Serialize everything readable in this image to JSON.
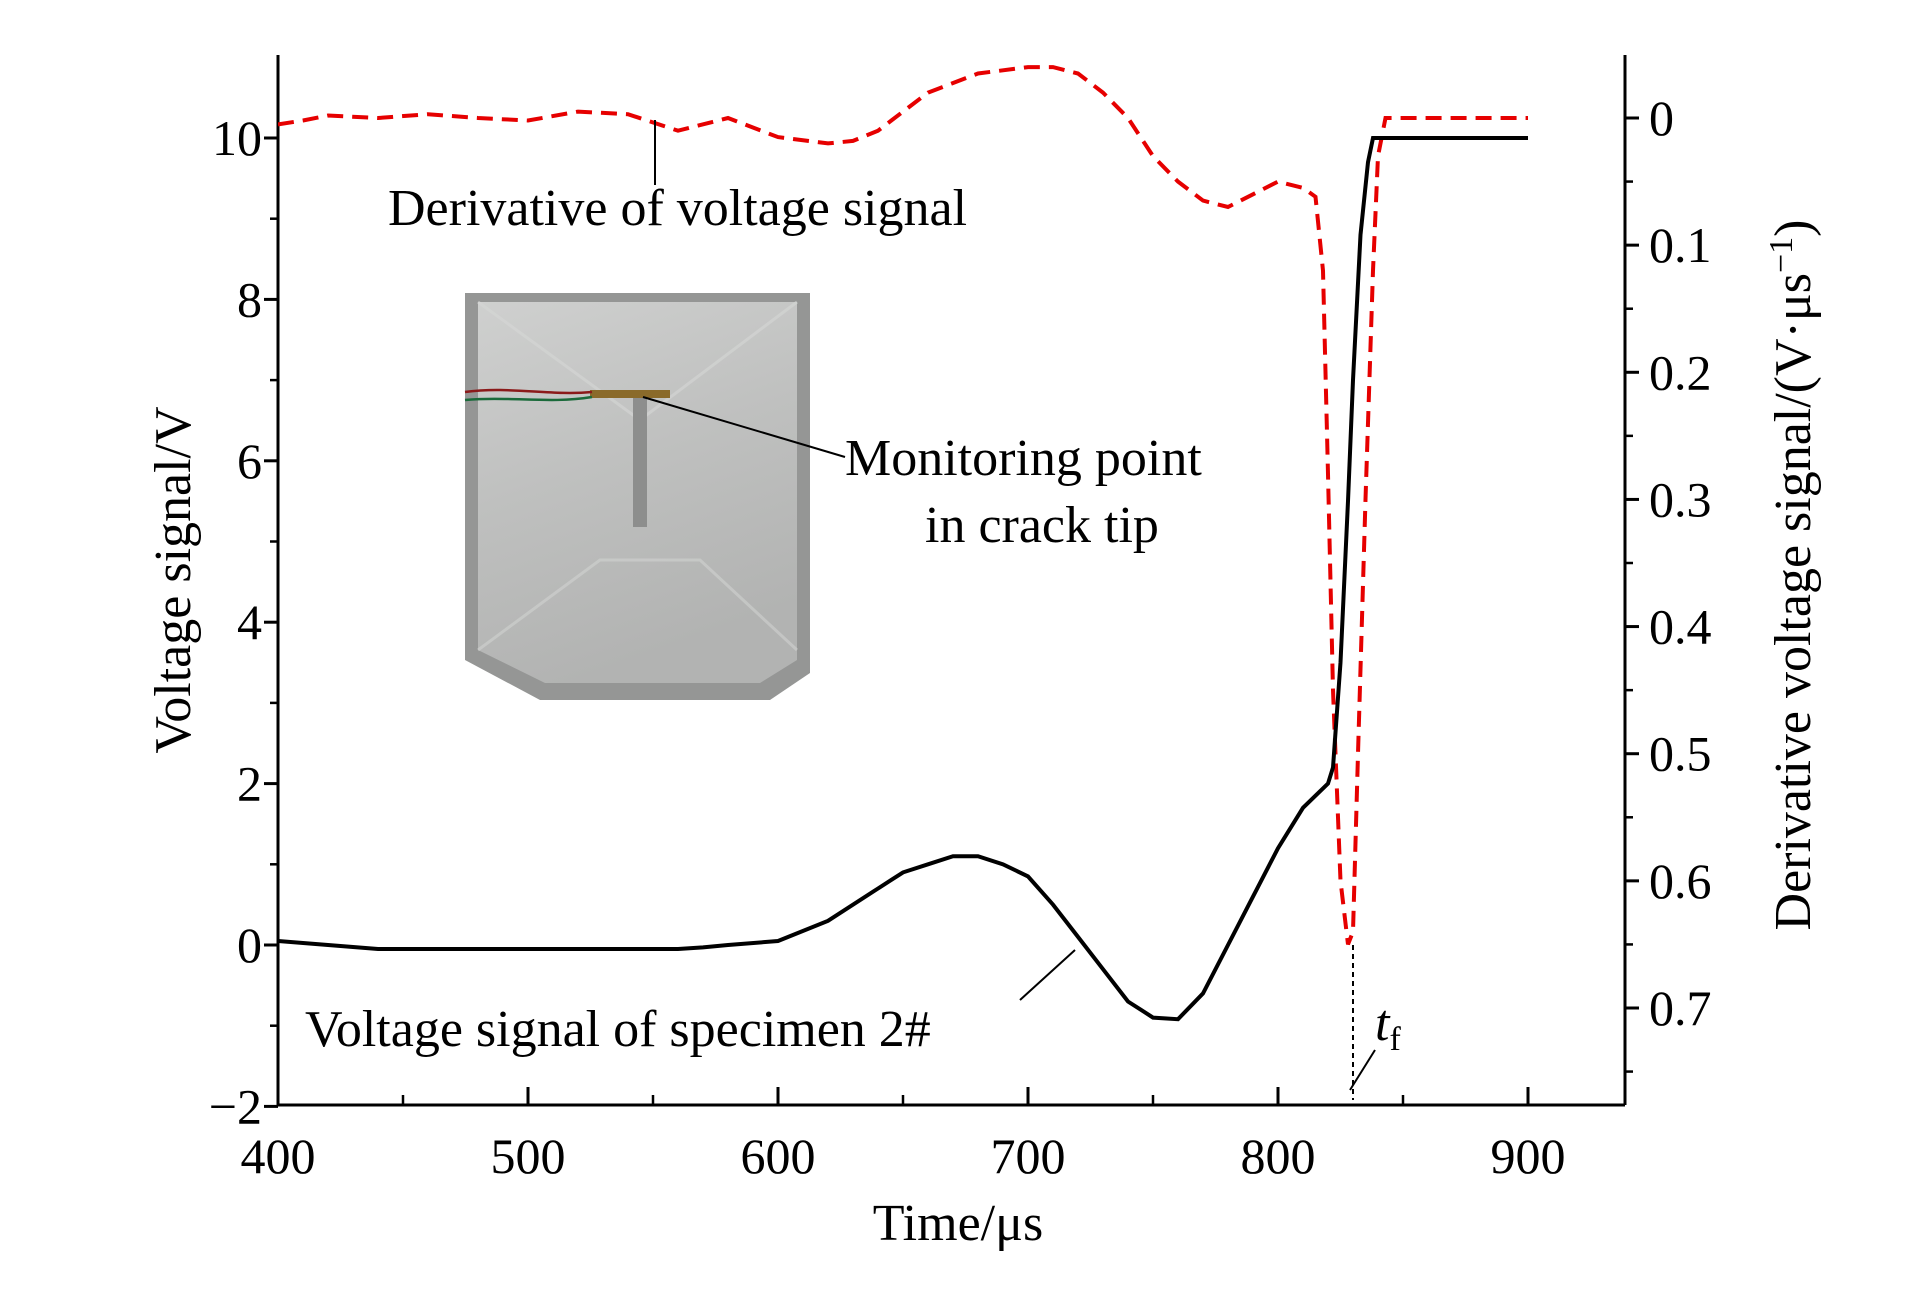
{
  "chart_data": {
    "type": "line",
    "title": "",
    "xlabel": "Time/μs",
    "ylabel": "Voltage signal/V",
    "y2label_base": "Derivative voltage signal/(V·μs",
    "y2label_sup": "−1",
    "y2label_close": ")",
    "xlim": [
      400,
      940
    ],
    "ylim": [
      -2,
      11
    ],
    "y2lim": [
      0.78,
      -0.05
    ],
    "y2_inverted": true,
    "x_ticks": [
      400,
      500,
      600,
      700,
      800,
      900
    ],
    "x_tick_labels": [
      "400",
      "500",
      "600",
      "700",
      "800",
      "900"
    ],
    "y_ticks": [
      -2,
      0,
      2,
      4,
      6,
      8,
      10
    ],
    "y_tick_labels": [
      "−2",
      "0",
      "2",
      "4",
      "6",
      "8",
      "10"
    ],
    "y2_ticks": [
      0,
      0.1,
      0.2,
      0.3,
      0.4,
      0.5,
      0.6,
      0.7
    ],
    "y2_tick_labels": [
      "0",
      "0.1",
      "0.2",
      "0.3",
      "0.4",
      "0.5",
      "0.6",
      "0.7"
    ],
    "grid": false,
    "series": [
      {
        "name": "Voltage signal of specimen 2#",
        "axis": "left",
        "color": "#000000",
        "dash": "solid",
        "x": [
          400,
          420,
          440,
          460,
          480,
          500,
          520,
          540,
          560,
          570,
          580,
          600,
          620,
          640,
          650,
          660,
          670,
          680,
          690,
          700,
          710,
          720,
          730,
          740,
          750,
          760,
          770,
          780,
          790,
          800,
          810,
          820,
          822,
          825,
          828,
          830,
          833,
          836,
          838,
          840,
          850,
          860,
          880,
          900
        ],
        "y": [
          0.05,
          0.0,
          -0.05,
          -0.05,
          -0.05,
          -0.05,
          -0.05,
          -0.05,
          -0.05,
          -0.03,
          0.0,
          0.05,
          0.3,
          0.7,
          0.9,
          1.0,
          1.1,
          1.1,
          1.0,
          0.85,
          0.5,
          0.1,
          -0.3,
          -0.7,
          -0.9,
          -0.92,
          -0.6,
          0.0,
          0.6,
          1.2,
          1.7,
          2.0,
          2.2,
          3.5,
          5.5,
          7.0,
          8.8,
          9.7,
          10.0,
          10.0,
          10.0,
          10.0,
          10.0,
          10.0
        ]
      },
      {
        "name": "Derivative of voltage signal",
        "axis": "right",
        "color": "#e60000",
        "dash": "dashed",
        "x": [
          400,
          410,
          420,
          440,
          460,
          480,
          500,
          520,
          540,
          560,
          580,
          600,
          620,
          630,
          640,
          660,
          680,
          700,
          710,
          720,
          730,
          740,
          750,
          760,
          770,
          780,
          790,
          800,
          810,
          815,
          818,
          820,
          822,
          825,
          828,
          830,
          832,
          835,
          838,
          840,
          843,
          850,
          860,
          900
        ],
        "y": [
          0.005,
          0.002,
          -0.002,
          0.0,
          -0.003,
          0.0,
          0.002,
          -0.005,
          -0.003,
          0.01,
          0.0,
          0.015,
          0.02,
          0.018,
          0.01,
          -0.02,
          -0.035,
          -0.04,
          -0.04,
          -0.035,
          -0.02,
          0.0,
          0.03,
          0.05,
          0.065,
          0.07,
          0.06,
          0.05,
          0.055,
          0.062,
          0.12,
          0.28,
          0.45,
          0.6,
          0.65,
          0.64,
          0.5,
          0.3,
          0.12,
          0.03,
          0.0,
          0.0,
          0.0,
          0.0
        ]
      }
    ],
    "annotations": [
      {
        "text": "Derivative of voltage signal"
      },
      {
        "text": "Monitoring point"
      },
      {
        "text": "in crack tip"
      },
      {
        "text": "Voltage signal of specimen 2#"
      },
      {
        "text": "t",
        "sub": "f",
        "x": 830
      }
    ],
    "inset": {
      "type": "photo"
    }
  }
}
